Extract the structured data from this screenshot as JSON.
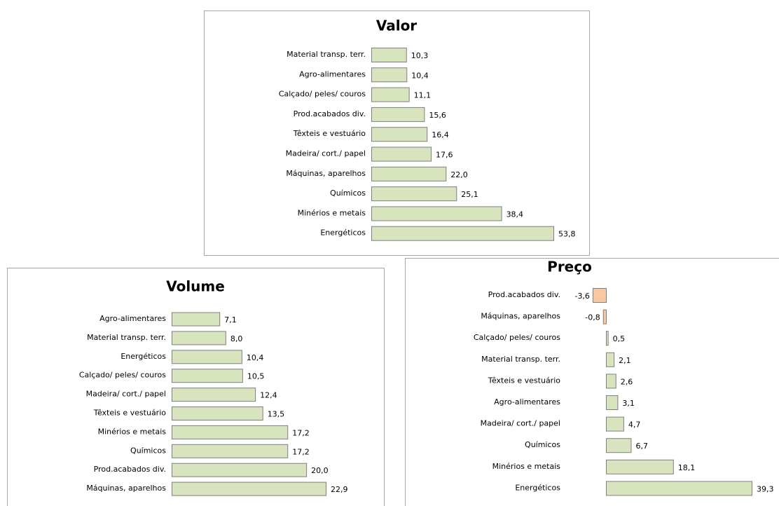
{
  "chart_data": [
    {
      "type": "bar",
      "orientation": "horizontal",
      "title": "Valor",
      "categories": [
        "Material transp. terr.",
        "Agro-alimentares",
        "Calçado/ peles/ couros",
        "Prod.acabados div.",
        "Têxteis e vestuário",
        "Madeira/ cort./ papel",
        "Máquinas, aparelhos",
        "Químicos",
        "Minérios e metais",
        "Energéticos"
      ],
      "values": [
        10.3,
        10.4,
        11.1,
        15.6,
        16.4,
        17.6,
        22.0,
        25.1,
        38.4,
        53.8
      ],
      "value_labels": [
        "10,3",
        "10,4",
        "11,1",
        "15,6",
        "16,4",
        "17,6",
        "22,0",
        "25,1",
        "38,4",
        "53,8"
      ],
      "color": "#d7e4bd",
      "negative_color": "#fac8a0"
    },
    {
      "type": "bar",
      "orientation": "horizontal",
      "title": "Volume",
      "categories": [
        "Agro-alimentares",
        "Material transp. terr.",
        "Energéticos",
        "Calçado/ peles/ couros",
        "Madeira/ cort./ papel",
        "Têxteis e vestuário",
        "Minérios e metais",
        "Químicos",
        "Prod.acabados div.",
        "Máquinas, aparelhos"
      ],
      "values": [
        7.1,
        8.0,
        10.4,
        10.5,
        12.4,
        13.5,
        17.2,
        17.2,
        20.0,
        22.9
      ],
      "value_labels": [
        "7,1",
        "8,0",
        "10,4",
        "10,5",
        "12,4",
        "13,5",
        "17,2",
        "17,2",
        "20,0",
        "22,9"
      ],
      "color": "#d7e4bd",
      "negative_color": "#fac8a0"
    },
    {
      "type": "bar",
      "orientation": "horizontal",
      "title": "Preço",
      "categories": [
        "Prod.acabados div.",
        "Máquinas, aparelhos",
        "Calçado/ peles/ couros",
        "Material transp. terr.",
        "Têxteis e vestuário",
        "Agro-alimentares",
        "Madeira/ cort./ papel",
        "Químicos",
        "Minérios e metais",
        "Energéticos"
      ],
      "values": [
        -3.6,
        -0.8,
        0.5,
        2.1,
        2.6,
        3.1,
        4.7,
        6.7,
        18.1,
        39.3
      ],
      "value_labels": [
        "-3,6",
        "-0,8",
        "0,5",
        "2,1",
        "2,6",
        "3,1",
        "4,7",
        "6,7",
        "18,1",
        "39,3"
      ],
      "color": "#d7e4bd",
      "negative_color": "#fac8a0"
    }
  ]
}
